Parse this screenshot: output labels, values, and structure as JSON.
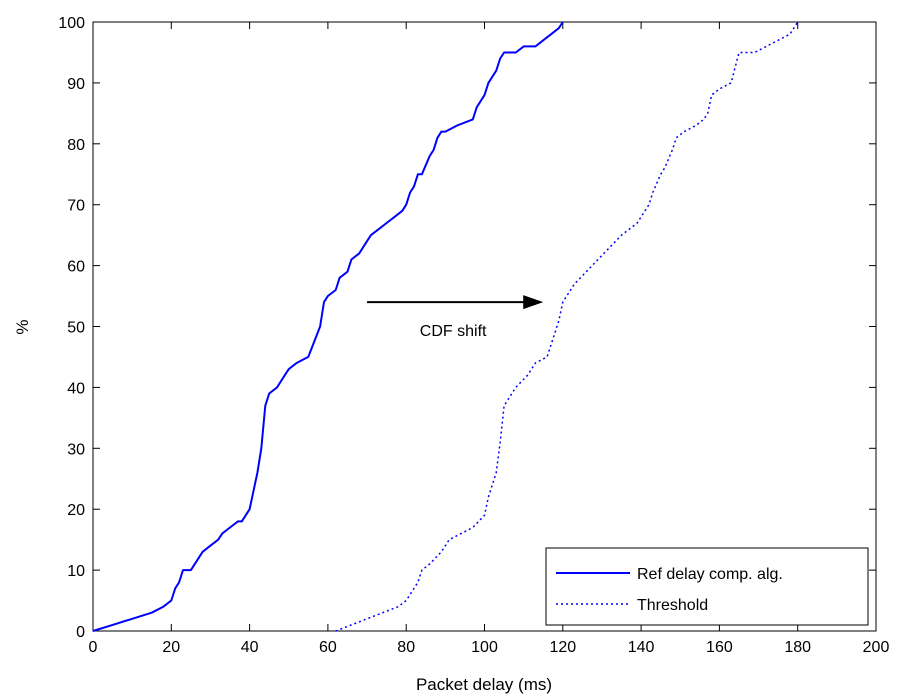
{
  "chart_data": {
    "type": "line",
    "title": "",
    "xlabel": "Packet delay (ms)",
    "ylabel": "%",
    "xlim": [
      0,
      200
    ],
    "ylim": [
      0,
      100
    ],
    "xticks": [
      0,
      20,
      40,
      60,
      80,
      100,
      120,
      140,
      160,
      180,
      200
    ],
    "yticks": [
      0,
      10,
      20,
      30,
      40,
      50,
      60,
      70,
      80,
      90,
      100
    ],
    "grid": false,
    "legend_position": "bottom-right",
    "annotation": {
      "text": "CDF shift",
      "arrow_from": [
        70,
        54
      ],
      "arrow_to": [
        115,
        54
      ]
    },
    "series": [
      {
        "name": "Ref delay comp. alg.",
        "style": "solid",
        "color": "#0000ff",
        "x": [
          0,
          5,
          10,
          15,
          18,
          20,
          21,
          22,
          23,
          25,
          27,
          28,
          30,
          32,
          33,
          35,
          37,
          38,
          40,
          41,
          42,
          43,
          44,
          45,
          47,
          49,
          50,
          52,
          55,
          58,
          59,
          60,
          62,
          63,
          65,
          66,
          68,
          69,
          70,
          71,
          73,
          75,
          77,
          79,
          80,
          81,
          82,
          83,
          84,
          86,
          87,
          88,
          89,
          90,
          93,
          97,
          98,
          100,
          101,
          103,
          104,
          105,
          108,
          110,
          113,
          115,
          117,
          119,
          120
        ],
        "y": [
          0,
          1,
          2,
          3,
          4,
          5,
          7,
          8,
          10,
          10,
          12,
          13,
          14,
          15,
          16,
          17,
          18,
          18,
          20,
          23,
          26,
          30,
          37,
          39,
          40,
          42,
          43,
          44,
          45,
          50,
          54,
          55,
          56,
          58,
          59,
          61,
          62,
          63,
          64,
          65,
          66,
          67,
          68,
          69,
          70,
          72,
          73,
          75,
          75,
          78,
          79,
          81,
          82,
          82,
          83,
          84,
          86,
          88,
          90,
          92,
          94,
          95,
          95,
          96,
          96,
          97,
          98,
          99,
          100
        ]
      },
      {
        "name": "Threshold",
        "style": "dotted",
        "color": "#0000ff",
        "x": [
          62,
          66,
          70,
          74,
          78,
          80,
          82,
          83,
          84,
          86,
          89,
          91,
          94,
          97,
          100,
          101,
          103,
          104,
          105,
          106,
          108,
          111,
          113,
          116,
          118,
          119,
          120,
          121,
          123,
          126,
          129,
          132,
          135,
          137,
          139,
          141,
          142,
          143,
          145,
          146,
          148,
          149,
          151,
          154,
          156,
          157,
          158,
          160,
          163,
          165,
          169,
          172,
          175,
          178,
          180
        ],
        "y": [
          0,
          1,
          2,
          3,
          4,
          5,
          7,
          8,
          10,
          11,
          13,
          15,
          16,
          17,
          19,
          22,
          26,
          31,
          37,
          38,
          40,
          42,
          44,
          45,
          49,
          51,
          54,
          55,
          57,
          59,
          61,
          63,
          65,
          66,
          67,
          69,
          70,
          72,
          75,
          76,
          79,
          81,
          82,
          83,
          84,
          85,
          88,
          89,
          90,
          95,
          95,
          96,
          97,
          98,
          100
        ]
      }
    ]
  }
}
